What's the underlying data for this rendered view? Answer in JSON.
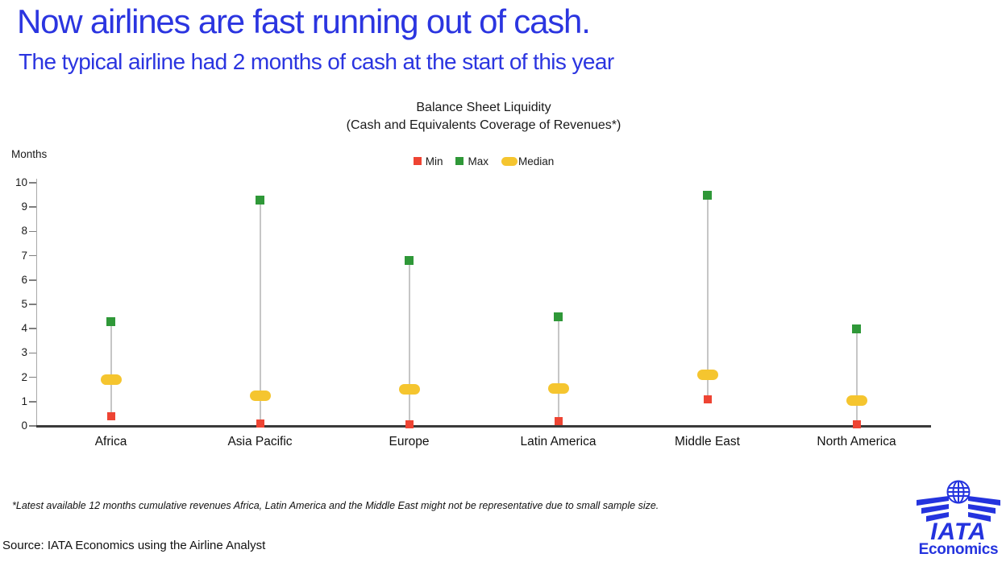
{
  "header": {
    "title": "Now airlines are fast running out of cash.",
    "subtitle": "The typical airline had 2 months of cash at the start of this year",
    "accent_color": "#2B35E0"
  },
  "chart": {
    "title": "Balance Sheet Liquidity",
    "subtitle": "(Cash and Equivalents Coverage of Revenues*)",
    "y_axis_label": "Months"
  },
  "chart_data": {
    "type": "scatter",
    "variant": "min-max-median range plot",
    "title": "Balance Sheet Liquidity",
    "subtitle": "(Cash and Equivalents Coverage of Revenues*)",
    "ylabel": "Months",
    "ylim": [
      0,
      10
    ],
    "y_ticks": [
      0,
      1,
      2,
      3,
      4,
      5,
      6,
      7,
      8,
      9,
      10
    ],
    "grid": false,
    "legend_position": "top-center",
    "categories": [
      "Africa",
      "Asia Pacific",
      "Europe",
      "Latin America",
      "Middle East",
      "North America"
    ],
    "series": [
      {
        "name": "Min",
        "marker": "square",
        "color": "#EE4433",
        "values": [
          0.4,
          0.1,
          0.05,
          0.2,
          1.1,
          0.05
        ]
      },
      {
        "name": "Max",
        "marker": "square",
        "color": "#2F9838",
        "values": [
          4.3,
          9.3,
          6.8,
          4.5,
          9.5,
          4.0
        ]
      },
      {
        "name": "Median",
        "marker": "pill",
        "color": "#F5C52F",
        "values": [
          1.9,
          1.25,
          1.5,
          1.55,
          2.1,
          1.05
        ]
      }
    ]
  },
  "footnote": {
    "text": "*Latest available 12 months cumulative revenues Africa, Latin America and the Middle East might not be representative due to small sample size."
  },
  "source": {
    "text": "Source: IATA Economics using the Airline Analyst"
  },
  "logo": {
    "brand": "IATA",
    "division": "Economics",
    "color": "#2433DE"
  }
}
